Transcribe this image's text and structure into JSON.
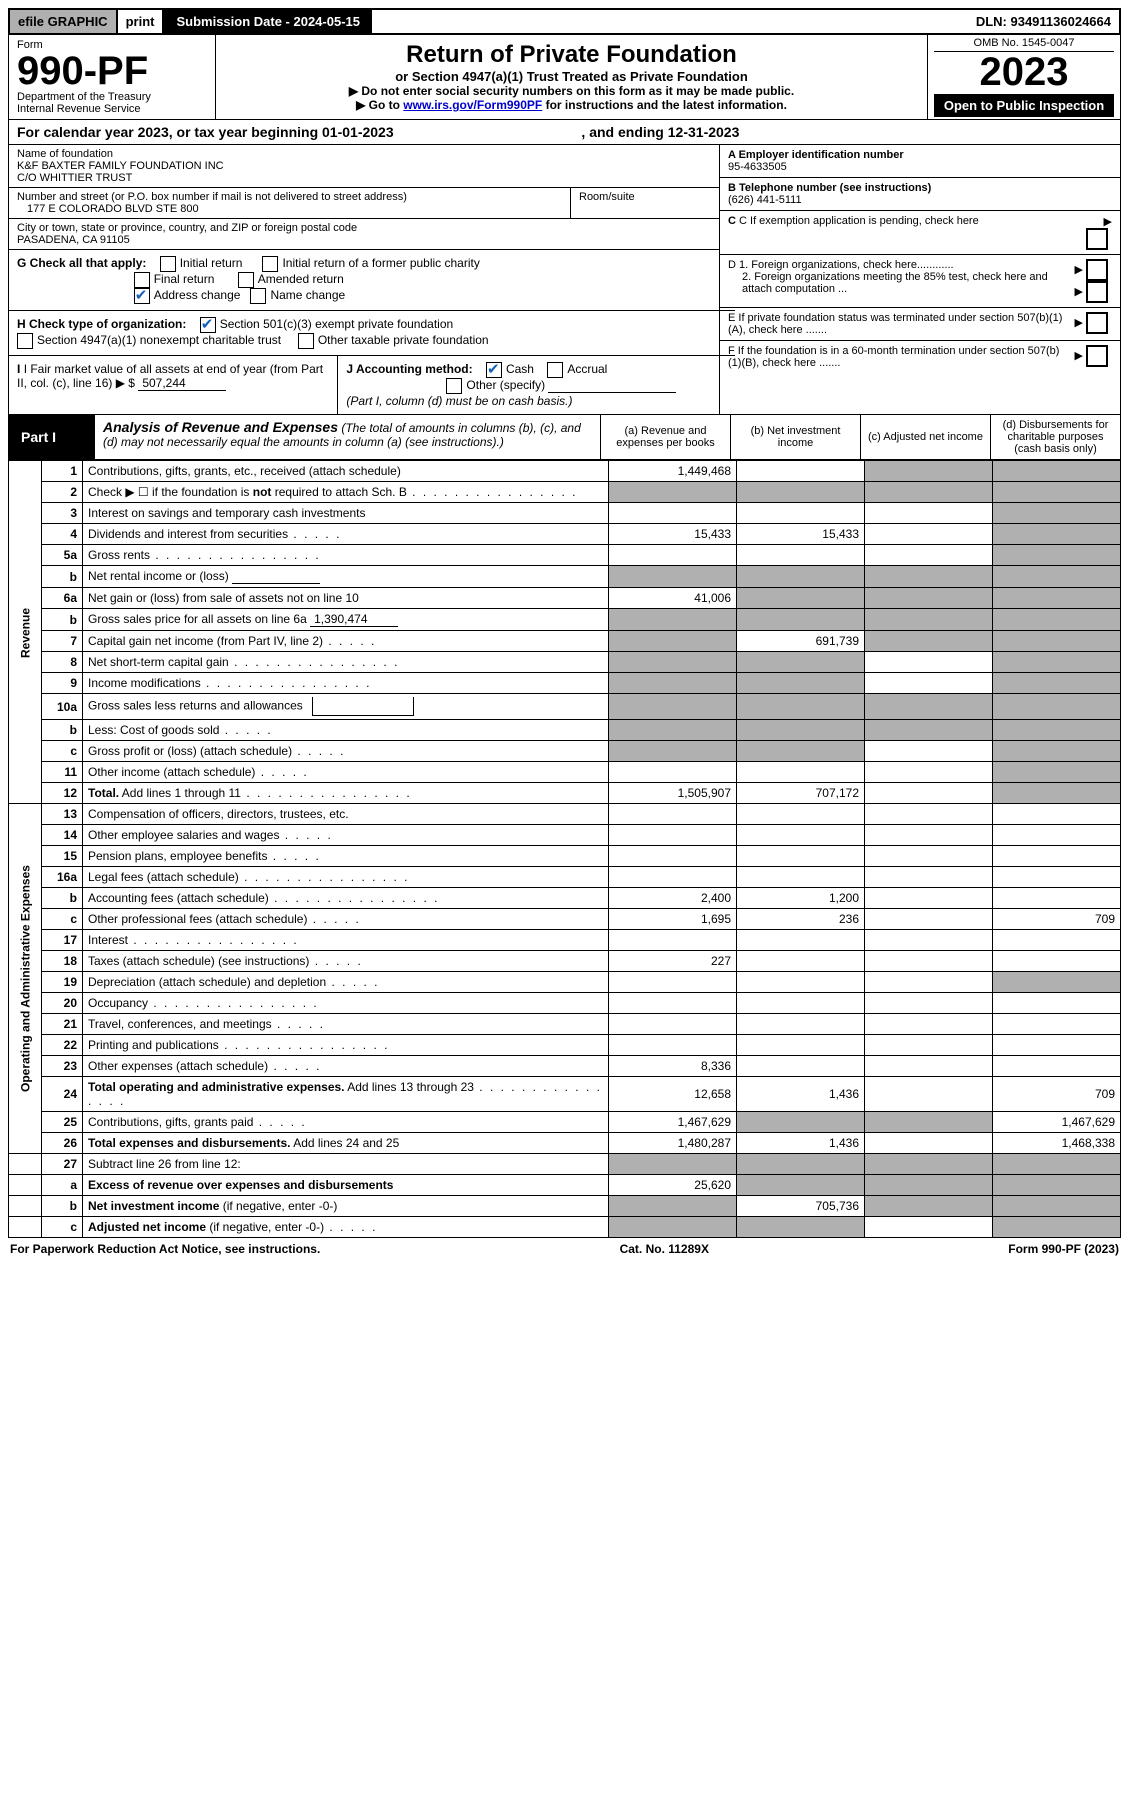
{
  "topbar": {
    "efile": "efile GRAPHIC",
    "print": "print",
    "submission": "Submission Date - 2024-05-15",
    "dln": "DLN: 93491136024664"
  },
  "header": {
    "form_word": "Form",
    "form_number": "990-PF",
    "dept": "Department of the Treasury",
    "irs": "Internal Revenue Service",
    "title": "Return of Private Foundation",
    "subtitle": "or Section 4947(a)(1) Trust Treated as Private Foundation",
    "note1": "▶ Do not enter social security numbers on this form as it may be made public.",
    "note2_pre": "▶ Go to ",
    "note2_link": "www.irs.gov/Form990PF",
    "note2_post": " for instructions and the latest information.",
    "omb": "OMB No. 1545-0047",
    "year": "2023",
    "open": "Open to Public Inspection"
  },
  "cal": {
    "text_pre": "For calendar year 2023, or tax year beginning ",
    "begin": "01-01-2023",
    "mid": " , and ending ",
    "end": "12-31-2023"
  },
  "entity": {
    "name_label": "Name of foundation",
    "name1": "K&F BAXTER FAMILY FOUNDATION INC",
    "name2": "C/O WHITTIER TRUST",
    "addr_label": "Number and street (or P.O. box number if mail is not delivered to street address)",
    "room_label": "Room/suite",
    "addr": "177 E COLORADO BLVD STE 800",
    "city_label": "City or town, state or province, country, and ZIP or foreign postal code",
    "city": "PASADENA, CA  91105",
    "A_label": "A Employer identification number",
    "A_val": "95-4633505",
    "B_label": "B Telephone number (see instructions)",
    "B_val": "(626) 441-5111",
    "C_label": "C If exemption application is pending, check here",
    "D1": "D 1. Foreign organizations, check here............",
    "D2": "2. Foreign organizations meeting the 85% test, check here and attach computation ...",
    "E": "E  If private foundation status was terminated under section 507(b)(1)(A), check here .......",
    "F": "F  If the foundation is in a 60-month termination under section 507(b)(1)(B), check here .......",
    "G_label": "G Check all that apply:",
    "G_opts": {
      "initial": "Initial return",
      "initial_former": "Initial return of a former public charity",
      "final": "Final return",
      "amended": "Amended return",
      "address": "Address change",
      "name": "Name change"
    },
    "H_label": "H Check type of organization:",
    "H_501c3": "Section 501(c)(3) exempt private foundation",
    "H_4947": "Section 4947(a)(1) nonexempt charitable trust",
    "H_other": "Other taxable private foundation",
    "I_label": "I Fair market value of all assets at end of year (from Part II, col. (c), line 16)",
    "I_arrow": "▶ $",
    "I_val": "507,244",
    "J_label": "J Accounting method:",
    "J_cash": "Cash",
    "J_accrual": "Accrual",
    "J_other": "Other (specify)",
    "J_note": "(Part I, column (d) must be on cash basis.)"
  },
  "part1": {
    "label": "Part I",
    "title": "Analysis of Revenue and Expenses",
    "title_note": " (The total of amounts in columns (b), (c), and (d) may not necessarily equal the amounts in column (a) (see instructions).)",
    "cols": {
      "a": "(a)  Revenue and expenses per books",
      "b": "(b)  Net investment income",
      "c": "(c)  Adjusted net income",
      "d": "(d)  Disbursements for charitable purposes (cash basis only)"
    }
  },
  "sidelabels": {
    "rev": "Revenue",
    "exp": "Operating and Administrative Expenses"
  },
  "rows": [
    {
      "sec": "rev",
      "no": "1",
      "desc": "Contributions, gifts, grants, etc., received (attach schedule)",
      "a": "1,449,468",
      "b": "",
      "c": "shade",
      "d": "shade"
    },
    {
      "sec": "rev",
      "no": "2",
      "desc": "Check ▶ ☐ if the foundation is <b>not</b> required to attach Sch. B",
      "dots": true,
      "a": "shade",
      "b": "shade",
      "c": "shade",
      "d": "shade"
    },
    {
      "sec": "rev",
      "no": "3",
      "desc": "Interest on savings and temporary cash investments",
      "a": "",
      "b": "",
      "c": "",
      "d": "shade"
    },
    {
      "sec": "rev",
      "no": "4",
      "desc": "Dividends and interest from securities",
      "dots": "short",
      "a": "15,433",
      "b": "15,433",
      "c": "",
      "d": "shade"
    },
    {
      "sec": "rev",
      "no": "5a",
      "desc": "Gross rents",
      "dots": true,
      "a": "",
      "b": "",
      "c": "",
      "d": "shade"
    },
    {
      "sec": "rev",
      "no": "b",
      "desc": "Net rental income or (loss) <span class='inline-under'>&nbsp;</span>",
      "a": "shade",
      "b": "shade",
      "c": "shade",
      "d": "shade"
    },
    {
      "sec": "rev",
      "no": "6a",
      "desc": "Net gain or (loss) from sale of assets not on line 10",
      "a": "41,006",
      "b": "shade",
      "c": "shade",
      "d": "shade"
    },
    {
      "sec": "rev",
      "no": "b",
      "desc": "Gross sales price for all assets on line 6a <span class='inline-under'>1,390,474</span>",
      "a": "shade",
      "b": "shade",
      "c": "shade",
      "d": "shade"
    },
    {
      "sec": "rev",
      "no": "7",
      "desc": "Capital gain net income (from Part IV, line 2)",
      "dots": "short",
      "a": "shade",
      "b": "691,739",
      "c": "shade",
      "d": "shade"
    },
    {
      "sec": "rev",
      "no": "8",
      "desc": "Net short-term capital gain",
      "dots": true,
      "a": "shade",
      "b": "shade",
      "c": "",
      "d": "shade"
    },
    {
      "sec": "rev",
      "no": "9",
      "desc": "Income modifications",
      "dots": true,
      "a": "shade",
      "b": "shade",
      "c": "",
      "d": "shade"
    },
    {
      "sec": "rev",
      "no": "10a",
      "desc": "Gross sales less returns and allowances <span class='subline-box'></span>",
      "a": "shade",
      "b": "shade",
      "c": "shade",
      "d": "shade"
    },
    {
      "sec": "rev",
      "no": "b",
      "desc": "Less: Cost of goods sold",
      "dots": "short",
      "sub": true,
      "a": "shade",
      "b": "shade",
      "c": "shade",
      "d": "shade"
    },
    {
      "sec": "rev",
      "no": "c",
      "desc": "Gross profit or (loss) (attach schedule)",
      "dots": "short",
      "a": "shade",
      "b": "shade",
      "c": "",
      "d": "shade"
    },
    {
      "sec": "rev",
      "no": "11",
      "desc": "Other income (attach schedule)",
      "dots": "short",
      "a": "",
      "b": "",
      "c": "",
      "d": "shade"
    },
    {
      "sec": "rev",
      "no": "12",
      "desc": "<b>Total.</b> Add lines 1 through 11",
      "dots": true,
      "a": "1,505,907",
      "b": "707,172",
      "c": "",
      "d": "shade"
    },
    {
      "sec": "exp",
      "no": "13",
      "desc": "Compensation of officers, directors, trustees, etc.",
      "a": "",
      "b": "",
      "c": "",
      "d": ""
    },
    {
      "sec": "exp",
      "no": "14",
      "desc": "Other employee salaries and wages",
      "dots": "short",
      "a": "",
      "b": "",
      "c": "",
      "d": ""
    },
    {
      "sec": "exp",
      "no": "15",
      "desc": "Pension plans, employee benefits",
      "dots": "short",
      "a": "",
      "b": "",
      "c": "",
      "d": ""
    },
    {
      "sec": "exp",
      "no": "16a",
      "desc": "Legal fees (attach schedule)",
      "dots": true,
      "a": "",
      "b": "",
      "c": "",
      "d": ""
    },
    {
      "sec": "exp",
      "no": "b",
      "desc": "Accounting fees (attach schedule)",
      "dots": true,
      "a": "2,400",
      "b": "1,200",
      "c": "",
      "d": ""
    },
    {
      "sec": "exp",
      "no": "c",
      "desc": "Other professional fees (attach schedule)",
      "dots": "short",
      "a": "1,695",
      "b": "236",
      "c": "",
      "d": "709"
    },
    {
      "sec": "exp",
      "no": "17",
      "desc": "Interest",
      "dots": true,
      "a": "",
      "b": "",
      "c": "",
      "d": ""
    },
    {
      "sec": "exp",
      "no": "18",
      "desc": "Taxes (attach schedule) (see instructions)",
      "dots": "short",
      "a": "227",
      "b": "",
      "c": "",
      "d": ""
    },
    {
      "sec": "exp",
      "no": "19",
      "desc": "Depreciation (attach schedule) and depletion",
      "dots": "short",
      "a": "",
      "b": "",
      "c": "",
      "d": "shade"
    },
    {
      "sec": "exp",
      "no": "20",
      "desc": "Occupancy",
      "dots": true,
      "a": "",
      "b": "",
      "c": "",
      "d": ""
    },
    {
      "sec": "exp",
      "no": "21",
      "desc": "Travel, conferences, and meetings",
      "dots": "short",
      "a": "",
      "b": "",
      "c": "",
      "d": ""
    },
    {
      "sec": "exp",
      "no": "22",
      "desc": "Printing and publications",
      "dots": true,
      "a": "",
      "b": "",
      "c": "",
      "d": ""
    },
    {
      "sec": "exp",
      "no": "23",
      "desc": "Other expenses (attach schedule)",
      "dots": "short",
      "a": "8,336",
      "b": "",
      "c": "",
      "d": ""
    },
    {
      "sec": "exp",
      "no": "24",
      "desc": "<b>Total operating and administrative expenses.</b> Add lines 13 through 23",
      "dots": true,
      "a": "12,658",
      "b": "1,436",
      "c": "",
      "d": "709"
    },
    {
      "sec": "exp",
      "no": "25",
      "desc": "Contributions, gifts, grants paid",
      "dots": "short",
      "a": "1,467,629",
      "b": "shade",
      "c": "shade",
      "d": "1,467,629"
    },
    {
      "sec": "exp",
      "no": "26",
      "desc": "<b>Total expenses and disbursements.</b> Add lines 24 and 25",
      "a": "1,480,287",
      "b": "1,436",
      "c": "",
      "d": "1,468,338"
    },
    {
      "sec": "none",
      "no": "27",
      "desc": "Subtract line 26 from line 12:",
      "a": "shade",
      "b": "shade",
      "c": "shade",
      "d": "shade"
    },
    {
      "sec": "none",
      "no": "a",
      "desc": "<b>Excess of revenue over expenses and disbursements</b>",
      "a": "25,620",
      "b": "shade",
      "c": "shade",
      "d": "shade"
    },
    {
      "sec": "none",
      "no": "b",
      "desc": "<b>Net investment income</b> (if negative, enter -0-)",
      "a": "shade",
      "b": "705,736",
      "c": "shade",
      "d": "shade"
    },
    {
      "sec": "none",
      "no": "c",
      "desc": "<b>Adjusted net income</b> (if negative, enter -0-)",
      "dots": "short",
      "a": "shade",
      "b": "shade",
      "c": "",
      "d": "shade"
    }
  ],
  "footer": {
    "left": "For Paperwork Reduction Act Notice, see instructions.",
    "mid": "Cat. No. 11289X",
    "right": "Form 990-PF (2023)"
  },
  "colors": {
    "shade": "#b0b0b0",
    "link": "#0000cc",
    "check": "#1560bd"
  }
}
